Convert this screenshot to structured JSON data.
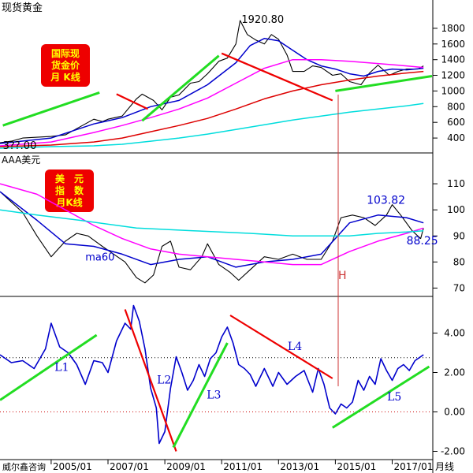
{
  "window": {
    "bottom_axis_title": "月线",
    "footer_source": "威尔鑫咨询"
  },
  "colors": {
    "background": "#ffffff",
    "panel_border": "#000000",
    "price_black": "#000000",
    "ma_blue": "#0000cc",
    "ma_magenta": "#ff00ff",
    "ma_red": "#dd0000",
    "ma_cyan": "#00dddd",
    "trend_green": "#22dd22",
    "trend_red": "#ee0000",
    "marker_line": "#cc3333",
    "label_badge_bg": "#ee0000",
    "label_badge_text": "#ffff00",
    "annotation_text": "#0000cc",
    "dotted_ref_black": "#000000",
    "dotted_ref_red": "#cc0000"
  },
  "chart_data": [
    {
      "type": "line",
      "panel": "gold",
      "title": "现货黄金",
      "badge": [
        "国际现",
        "货金价",
        "月 K线"
      ],
      "x_ticks": [
        "2005/01",
        "2007/01",
        "2009/01",
        "2011/01",
        "2013/01",
        "2015/01",
        "2017/01"
      ],
      "y_ticks": [
        400,
        600,
        800,
        1000,
        1200,
        1400,
        1600,
        1800
      ],
      "ylim": [
        250,
        1980
      ],
      "xlim": [
        2003.2,
        2018.4
      ],
      "annotations": [
        {
          "text": "1920.80",
          "x": 2011.7,
          "y": 1920.8
        },
        {
          "text": "3??.00",
          "x": 2003.3,
          "y": 310
        }
      ],
      "series": [
        {
          "role": "price",
          "x": [
            2003.2,
            2003.6,
            2004.0,
            2004.5,
            2005.0,
            2005.5,
            2006.0,
            2006.3,
            2006.5,
            2006.8,
            2007.0,
            2007.5,
            2008.0,
            2008.2,
            2008.6,
            2008.9,
            2009.2,
            2009.5,
            2009.9,
            2010.2,
            2010.5,
            2010.9,
            2011.2,
            2011.5,
            2011.65,
            2011.9,
            2012.2,
            2012.5,
            2012.75,
            2013.0,
            2013.3,
            2013.5,
            2013.9,
            2014.2,
            2014.5,
            2014.9,
            2015.2,
            2015.5,
            2015.9,
            2016.2,
            2016.5,
            2016.9,
            2017.2,
            2017.5,
            2017.9,
            2018.1
          ],
          "values": [
            340,
            360,
            400,
            410,
            420,
            440,
            540,
            600,
            640,
            610,
            640,
            680,
            900,
            960,
            880,
            760,
            920,
            950,
            1100,
            1120,
            1220,
            1380,
            1420,
            1600,
            1900,
            1720,
            1650,
            1600,
            1720,
            1660,
            1460,
            1250,
            1250,
            1320,
            1300,
            1200,
            1220,
            1120,
            1080,
            1230,
            1330,
            1200,
            1250,
            1280,
            1280,
            1320
          ]
        },
        {
          "role": "ma_blue",
          "x": [
            2003.2,
            2005.0,
            2006.5,
            2007.5,
            2008.5,
            2009.5,
            2010.5,
            2011.5,
            2012.0,
            2012.5,
            2013.0,
            2013.5,
            2014.0,
            2014.5,
            2015.0,
            2015.5,
            2016.0,
            2016.5,
            2017.0,
            2017.5,
            2018.1
          ],
          "values": [
            330,
            400,
            580,
            660,
            800,
            880,
            1080,
            1360,
            1580,
            1670,
            1640,
            1520,
            1400,
            1320,
            1280,
            1220,
            1190,
            1250,
            1280,
            1270,
            1290
          ]
        },
        {
          "role": "ma_magenta",
          "x": [
            2003.2,
            2005.0,
            2006.5,
            2007.5,
            2008.5,
            2009.5,
            2010.5,
            2011.5,
            2012.5,
            2013.5,
            2014.5,
            2015.5,
            2016.5,
            2017.5,
            2018.1
          ],
          "values": [
            300,
            350,
            470,
            560,
            660,
            770,
            910,
            1100,
            1290,
            1400,
            1400,
            1380,
            1350,
            1320,
            1300
          ]
        },
        {
          "role": "ma_red",
          "x": [
            2003.2,
            2005.0,
            2006.5,
            2007.5,
            2008.5,
            2009.5,
            2010.5,
            2011.5,
            2012.5,
            2013.5,
            2014.5,
            2015.5,
            2016.5,
            2017.5,
            2018.1
          ],
          "values": [
            290,
            310,
            350,
            400,
            480,
            560,
            650,
            770,
            900,
            1000,
            1080,
            1140,
            1190,
            1230,
            1250
          ]
        },
        {
          "role": "ma_cyan",
          "x": [
            2003.2,
            2005.0,
            2006.5,
            2007.5,
            2008.5,
            2009.5,
            2010.5,
            2011.5,
            2012.5,
            2013.5,
            2014.5,
            2015.5,
            2016.5,
            2017.5,
            2018.1
          ],
          "values": [
            270,
            290,
            300,
            320,
            360,
            400,
            450,
            510,
            570,
            630,
            680,
            730,
            770,
            810,
            840
          ]
        },
        {
          "role": "trend_green",
          "x": [
            2003.3,
            2006.7
          ],
          "values": [
            560,
            980
          ]
        },
        {
          "role": "trend_green",
          "x": [
            2008.2,
            2010.9
          ],
          "values": [
            620,
            1450
          ]
        },
        {
          "role": "trend_green",
          "x": [
            2015.0,
            2018.4
          ],
          "values": [
            1000,
            1190
          ]
        },
        {
          "role": "trend_red",
          "x": [
            2007.3,
            2008.4
          ],
          "values": [
            960,
            770
          ]
        },
        {
          "role": "trend_red",
          "x": [
            2011.0,
            2014.9
          ],
          "values": [
            1480,
            880
          ]
        }
      ]
    },
    {
      "type": "line",
      "panel": "dollar",
      "title": "AAA美元",
      "badge": [
        "美　元",
        "指　数",
        "月K线"
      ],
      "y_ticks": [
        70,
        80,
        90,
        100,
        110
      ],
      "ylim": [
        68,
        117
      ],
      "annotations": [
        {
          "text": "103.82",
          "x": 2016.1,
          "y": 103.82
        },
        {
          "text": "88.25",
          "x": 2017.5,
          "y": 88.25
        },
        {
          "text": "ma60",
          "x": 2006.2,
          "y": 82
        },
        {
          "text": "H",
          "x": 2015.1,
          "y": 75
        }
      ],
      "series": [
        {
          "role": "price",
          "x": [
            2003.2,
            2003.5,
            2004.0,
            2004.5,
            2005.0,
            2005.5,
            2005.9,
            2006.3,
            2006.8,
            2007.2,
            2007.6,
            2008.0,
            2008.3,
            2008.6,
            2008.9,
            2009.2,
            2009.5,
            2009.9,
            2010.3,
            2010.5,
            2010.9,
            2011.3,
            2011.6,
            2012.0,
            2012.5,
            2013.0,
            2013.5,
            2014.0,
            2014.5,
            2014.9,
            2015.2,
            2015.6,
            2016.0,
            2016.4,
            2016.8,
            2017.0,
            2017.3,
            2017.7,
            2018.0,
            2018.1
          ],
          "values": [
            107,
            104,
            99,
            90,
            82,
            88,
            91,
            90,
            86,
            83,
            80,
            74,
            72,
            75,
            86,
            88,
            78,
            77,
            82,
            87,
            79,
            76,
            73,
            77,
            82,
            81,
            83,
            81,
            81,
            88,
            97,
            98,
            97,
            94,
            98,
            102,
            98,
            92,
            89,
            93
          ]
        },
        {
          "role": "ma_blue",
          "x": [
            2003.2,
            2004.5,
            2005.5,
            2006.5,
            2007.5,
            2008.5,
            2009.5,
            2010.5,
            2011.5,
            2012.5,
            2013.5,
            2014.5,
            2015.5,
            2016.5,
            2017.5,
            2018.1
          ],
          "values": [
            107,
            96,
            87,
            86,
            83,
            79,
            81,
            82,
            78,
            80,
            81,
            83,
            95,
            98,
            97,
            95
          ]
        },
        {
          "role": "ma_magenta",
          "x": [
            2003.2,
            2004.5,
            2005.5,
            2006.5,
            2007.5,
            2008.5,
            2009.5,
            2010.5,
            2011.5,
            2012.5,
            2013.5,
            2014.5,
            2015.5,
            2016.5,
            2017.5,
            2018.1
          ],
          "values": [
            110,
            106,
            100,
            94,
            89,
            85,
            83,
            82,
            81,
            80,
            79,
            79,
            84,
            88,
            91,
            93
          ]
        },
        {
          "role": "ma_cyan",
          "x": [
            2003.2,
            2004.5,
            2006.0,
            2008.0,
            2010.0,
            2012.0,
            2013.5,
            2014.5,
            2015.5,
            2016.5,
            2017.5,
            2018.1
          ],
          "values": [
            100,
            98,
            96,
            93,
            92,
            91,
            90,
            90,
            90,
            91,
            91.5,
            92
          ]
        }
      ]
    },
    {
      "type": "line",
      "panel": "ratio",
      "y_ticks": [
        -2.0,
        0.0,
        2.0,
        4.0
      ],
      "ylim": [
        -2.3,
        5.7
      ],
      "reference_lines": [
        {
          "y": 2.75,
          "style": "dotted-black"
        },
        {
          "y": 0.0,
          "style": "dotted-red"
        }
      ],
      "trend_labels": [
        "L1",
        "L2",
        "L3",
        "L4",
        "L5"
      ],
      "series": [
        {
          "role": "ratio",
          "x": [
            2003.2,
            2003.6,
            2004.0,
            2004.4,
            2004.8,
            2005.0,
            2005.3,
            2005.6,
            2005.9,
            2006.2,
            2006.5,
            2006.8,
            2007.0,
            2007.3,
            2007.6,
            2007.8,
            2007.9,
            2008.1,
            2008.3,
            2008.5,
            2008.7,
            2008.8,
            2009.0,
            2009.2,
            2009.4,
            2009.6,
            2009.8,
            2010.0,
            2010.2,
            2010.4,
            2010.6,
            2010.8,
            2011.0,
            2011.2,
            2011.4,
            2011.6,
            2011.8,
            2012.0,
            2012.2,
            2012.5,
            2012.8,
            2013.0,
            2013.3,
            2013.6,
            2013.9,
            2014.2,
            2014.4,
            2014.6,
            2014.8,
            2015.0,
            2015.2,
            2015.4,
            2015.6,
            2015.8,
            2016.0,
            2016.2,
            2016.4,
            2016.6,
            2016.8,
            2017.0,
            2017.2,
            2017.4,
            2017.6,
            2017.8,
            2018.1
          ],
          "values": [
            2.9,
            2.5,
            2.6,
            2.2,
            3.2,
            4.5,
            3.3,
            3.0,
            2.4,
            1.4,
            2.6,
            2.5,
            2.0,
            3.6,
            4.5,
            4.2,
            5.4,
            4.6,
            3.2,
            1.2,
            0.2,
            -1.6,
            -1.0,
            1.2,
            2.8,
            2.0,
            1.1,
            1.6,
            2.4,
            1.8,
            2.7,
            3.0,
            3.8,
            4.3,
            3.5,
            2.4,
            2.2,
            1.9,
            1.3,
            2.2,
            1.3,
            2.0,
            1.4,
            1.8,
            2.1,
            1.0,
            2.2,
            1.4,
            0.2,
            -0.1,
            0.4,
            0.2,
            0.5,
            1.6,
            1.1,
            1.8,
            1.4,
            2.7,
            2.1,
            1.6,
            2.2,
            2.4,
            2.1,
            2.6,
            2.9
          ]
        },
        {
          "role": "trend_green",
          "label": "L1",
          "x": [
            2003.2,
            2006.6
          ],
          "values": [
            0.6,
            3.9
          ]
        },
        {
          "role": "trend_red",
          "label": "L2",
          "x": [
            2007.6,
            2009.4
          ],
          "values": [
            5.2,
            -2.0
          ]
        },
        {
          "role": "trend_green",
          "label": "L3",
          "x": [
            2009.3,
            2011.2
          ],
          "values": [
            -1.8,
            3.5
          ]
        },
        {
          "role": "trend_red",
          "label": "L4",
          "x": [
            2011.3,
            2014.9
          ],
          "values": [
            4.9,
            1.7
          ]
        },
        {
          "role": "trend_green",
          "label": "L5",
          "x": [
            2014.9,
            2018.3
          ],
          "values": [
            -0.8,
            2.3
          ]
        }
      ]
    }
  ]
}
